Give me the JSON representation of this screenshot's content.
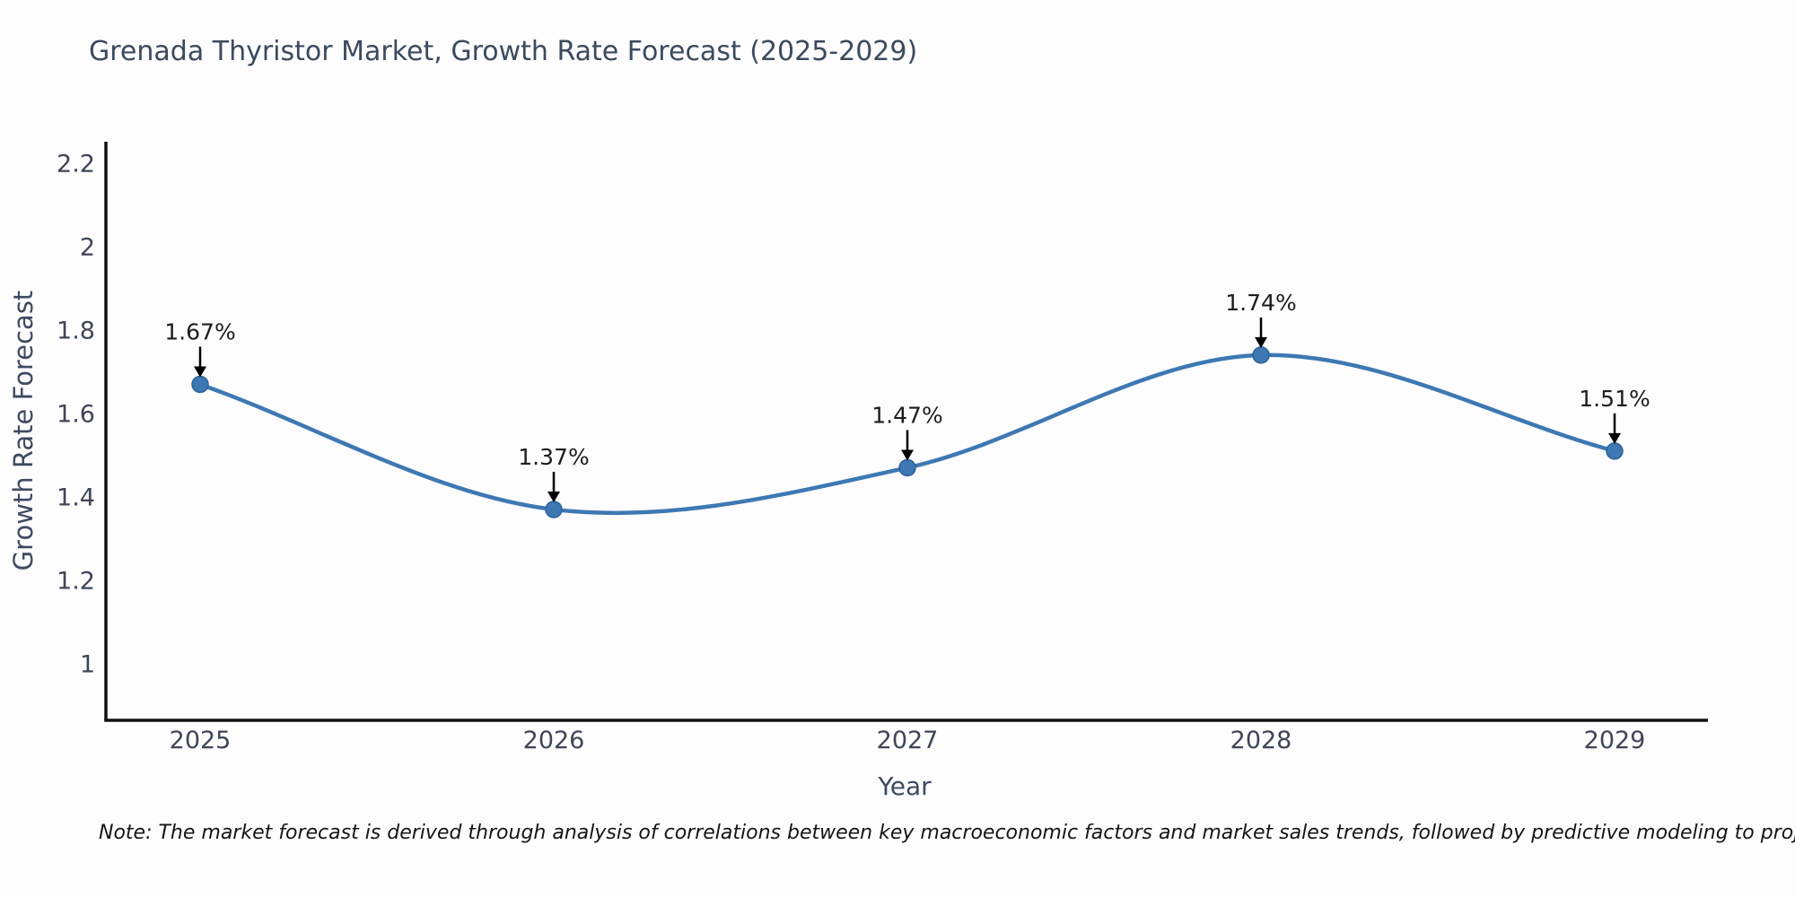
{
  "title": "Grenada Thyristor Market, Growth Rate Forecast (2025-2029)",
  "note": "Note: The market forecast is derived through analysis of correlations between key macroeconomic factors and market sales trends, followed by predictive modeling to project future sales",
  "chart_data": {
    "type": "line",
    "line_shape": "spline",
    "x": [
      "2025",
      "2026",
      "2027",
      "2028",
      "2029"
    ],
    "values": [
      1.67,
      1.37,
      1.47,
      1.74,
      1.51
    ],
    "point_labels": [
      "1.67%",
      "1.37%",
      "1.47%",
      "1.74%",
      "1.51%"
    ],
    "title": "Grenada Thyristor Market, Growth Rate Forecast (2025-2029)",
    "xlabel": "Year",
    "ylabel": "Growth Rate Forecast",
    "yticks": [
      2.2,
      2.0,
      1.8,
      1.6,
      1.4,
      1.2,
      1.0
    ],
    "ylim": [
      0.86,
      2.25
    ],
    "grid": false,
    "legend": false,
    "colors": {
      "line": "#3d78b3",
      "marker_fill": "#3d78b3",
      "marker_edge": "#2e639c",
      "annotation_text": "#1d1d1d",
      "arrow": "#000000",
      "axis": "#111111",
      "tick_label": "#3f4657",
      "axis_title": "#3e4961",
      "title_text": "#3b4a5e",
      "background": "#fdfdfd"
    }
  }
}
